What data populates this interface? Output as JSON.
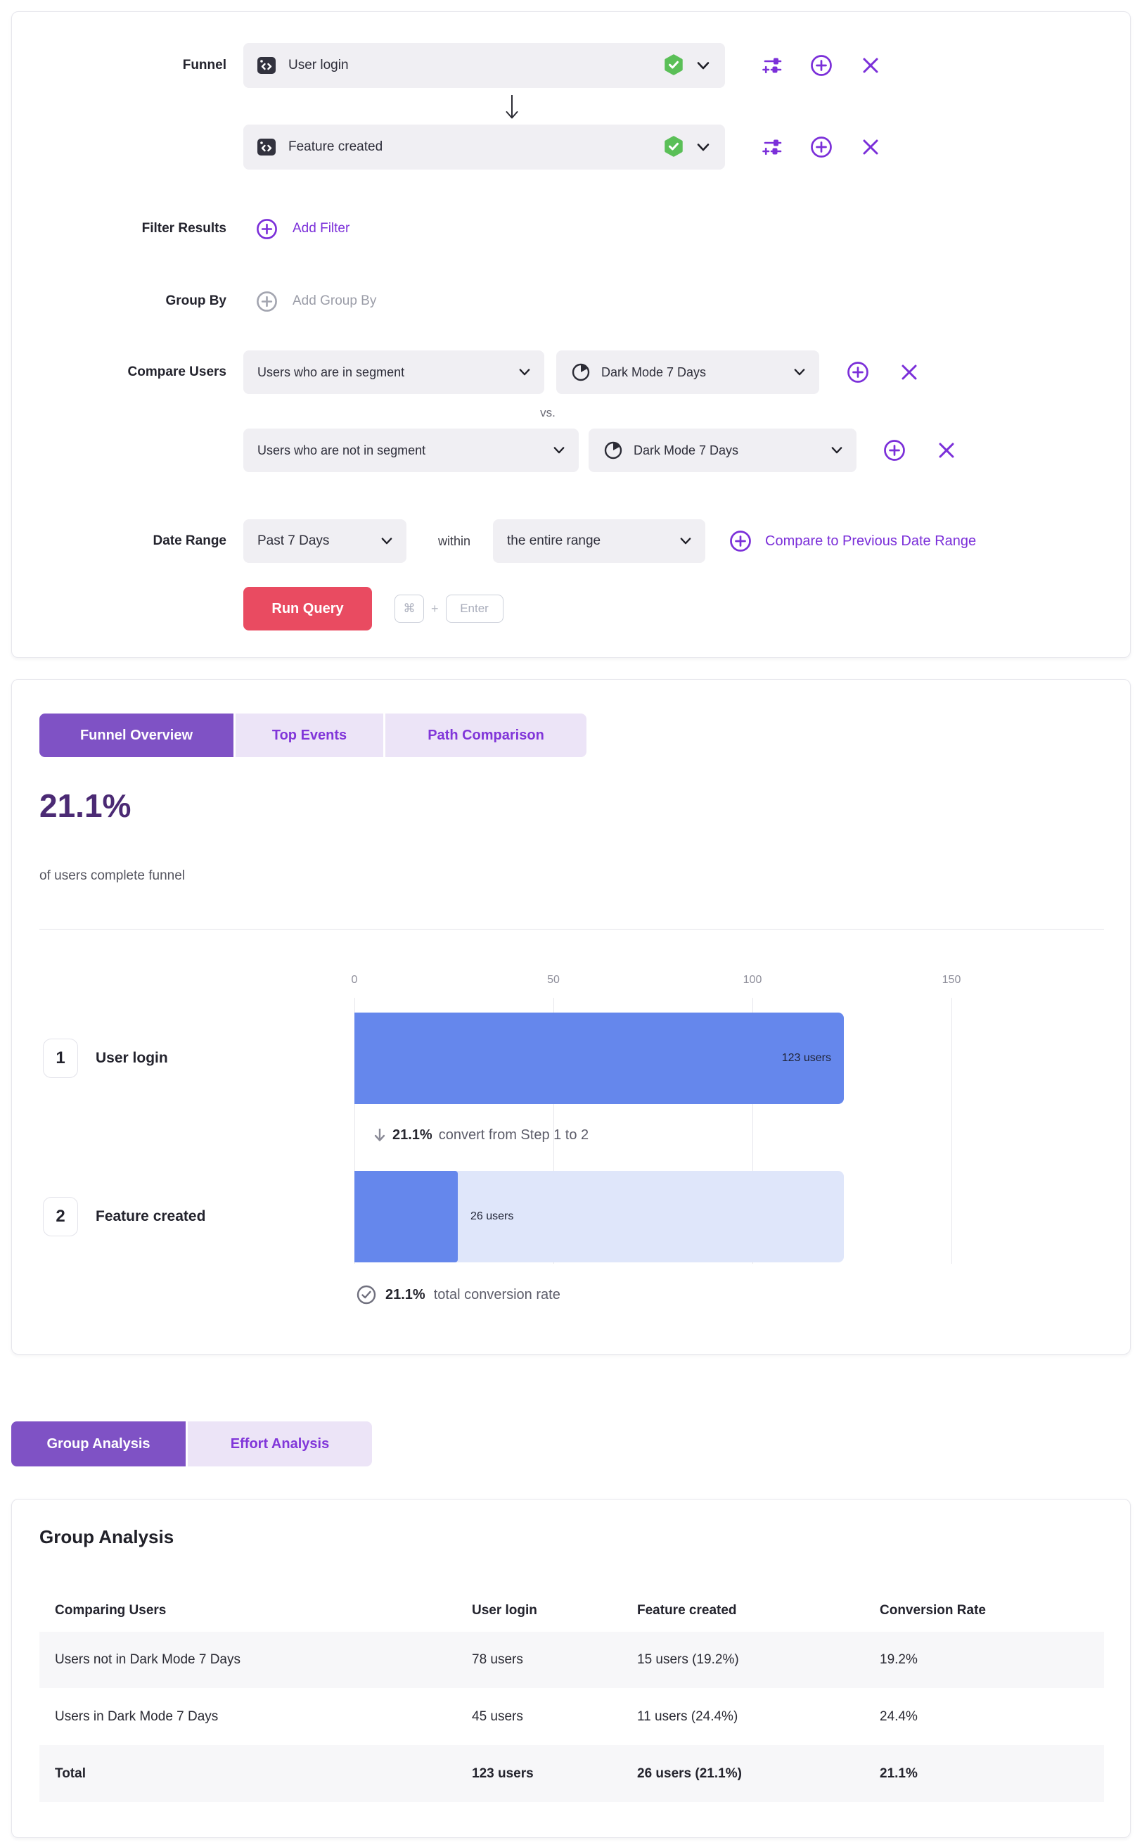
{
  "colors": {
    "accent_purple": "#7b2fd9",
    "tab_active_purple": "#7f52c5",
    "run_button_red": "#e94b61",
    "bar_blue": "#6587ec",
    "bar_track_blue": "#dfe6fa",
    "verified_green": "#5abf57",
    "headline_purple": "#4b2a74"
  },
  "query_builder": {
    "funnel_label": "Funnel",
    "steps": [
      {
        "name": "User login"
      },
      {
        "name": "Feature created"
      }
    ],
    "filter_results": {
      "label": "Filter Results",
      "add_filter_label": "Add Filter"
    },
    "group_by": {
      "label": "Group By",
      "add_group_by_label": "Add Group By"
    },
    "compare_users": {
      "label": "Compare Users",
      "vs_label": "vs.",
      "rows": [
        {
          "selector": "Users who are in segment",
          "segment": "Dark Mode 7 Days"
        },
        {
          "selector": "Users who are not in segment",
          "segment": "Dark Mode 7 Days"
        }
      ]
    },
    "date_range": {
      "label": "Date Range",
      "range_value": "Past 7 Days",
      "within_label": "within",
      "window_value": "the entire range",
      "compare_link": "Compare to Previous Date Range"
    },
    "run_query": {
      "button_label": "Run Query",
      "shortcut_key_1": "⌘",
      "shortcut_plus": "+",
      "shortcut_key_2": "Enter"
    }
  },
  "overview": {
    "tabs": [
      {
        "label": "Funnel Overview",
        "active": true
      },
      {
        "label": "Top Events",
        "active": false
      },
      {
        "label": "Path Comparison",
        "active": false
      }
    ],
    "headline": "21.1%",
    "subtitle": "of users complete funnel"
  },
  "chart_data": {
    "type": "bar",
    "orientation": "horizontal",
    "title": "Funnel Overview",
    "categories": [
      "User login",
      "Feature created"
    ],
    "step_numbers": [
      "1",
      "2"
    ],
    "values": [
      123,
      26
    ],
    "value_labels": [
      "123 users",
      "26 users"
    ],
    "x_ticks": [
      "0",
      "50",
      "100",
      "150"
    ],
    "xlim": [
      0,
      200
    ],
    "grid": true,
    "step_conversion": {
      "percent": "21.1%",
      "text": "convert from Step 1 to 2"
    },
    "total_conversion": {
      "percent": "21.1%",
      "text": "total conversion rate"
    }
  },
  "analysis_tabs": [
    {
      "label": "Group Analysis",
      "active": true
    },
    {
      "label": "Effort Analysis",
      "active": false
    }
  ],
  "group_analysis": {
    "title": "Group Analysis",
    "columns": [
      "Comparing Users",
      "User login",
      "Feature created",
      "Conversion Rate"
    ],
    "rows": [
      {
        "cells": [
          "Users not in Dark Mode 7 Days",
          "78 users",
          "15 users (19.2%)",
          "19.2%"
        ]
      },
      {
        "cells": [
          "Users in Dark Mode 7 Days",
          "45 users",
          "11 users (24.4%)",
          "24.4%"
        ]
      },
      {
        "cells": [
          "Total",
          "123 users",
          "26 users (21.1%)",
          "21.1%"
        ]
      }
    ]
  }
}
